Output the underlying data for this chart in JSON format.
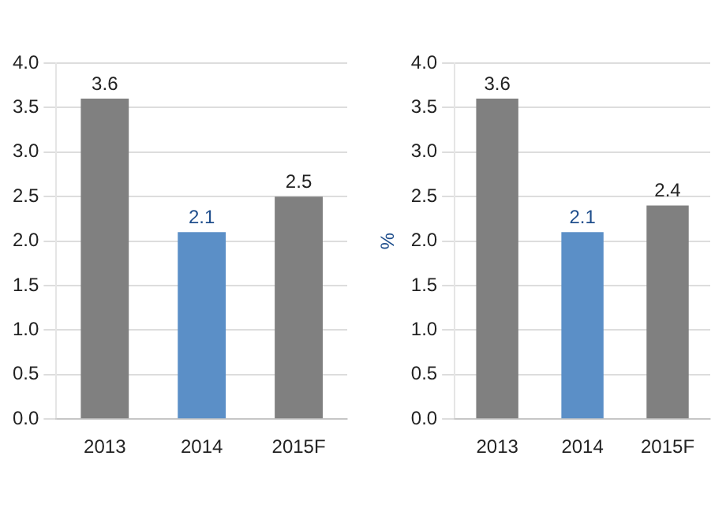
{
  "chart_data": [
    {
      "type": "bar",
      "categories": [
        "2013",
        "2014",
        "2015F"
      ],
      "colors": [
        "#808080",
        "#5b8fc7",
        "#808080"
      ],
      "values": [
        3.6,
        2.1,
        2.5
      ],
      "data_labels": true,
      "ylim": [
        0,
        4
      ],
      "yticks": [
        {
          "value": 0,
          "label": "0.0"
        },
        {
          "value": 0.5,
          "label": "0.5"
        },
        {
          "value": 1,
          "label": "1.0"
        },
        {
          "value": 1.5,
          "label": "1.5"
        },
        {
          "value": 2,
          "label": "2.0"
        },
        {
          "value": 2.5,
          "label": "2.5"
        },
        {
          "value": 3,
          "label": "3.0"
        },
        {
          "value": 3.5,
          "label": "3.5"
        },
        {
          "value": 4,
          "label": "4.0"
        }
      ],
      "grid": "y"
    },
    {
      "type": "bar",
      "categories": [
        "2013",
        "2014",
        "2015F"
      ],
      "colors": [
        "#808080",
        "#5b8fc7",
        "#808080"
      ],
      "values": [
        3.6,
        2.1,
        2.4
      ],
      "data_labels": true,
      "ylabel": "%",
      "ylim": [
        0,
        4
      ],
      "yticks": [
        {
          "value": 0,
          "label": "0.0"
        },
        {
          "value": 0.5,
          "label": "0.5"
        },
        {
          "value": 1,
          "label": "1.0"
        },
        {
          "value": 1.5,
          "label": "1.5"
        },
        {
          "value": 2,
          "label": "2.0"
        },
        {
          "value": 2.5,
          "label": "2.5"
        },
        {
          "value": 3,
          "label": "3.0"
        },
        {
          "value": 3.5,
          "label": "3.5"
        },
        {
          "value": 4,
          "label": "4.0"
        }
      ],
      "grid": "y"
    }
  ]
}
